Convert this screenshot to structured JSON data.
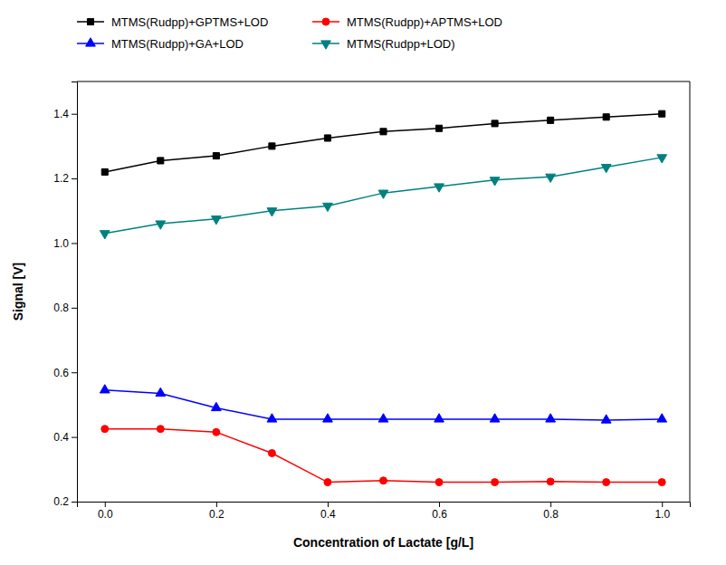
{
  "chart_data": {
    "type": "line",
    "x": [
      0.0,
      0.1,
      0.2,
      0.3,
      0.4,
      0.5,
      0.6,
      0.7,
      0.8,
      0.9,
      1.0
    ],
    "series": [
      {
        "name": "MTMS(Rudpp)+GPTMS+LOD",
        "color": "#000000",
        "marker": "square",
        "values": [
          1.22,
          1.255,
          1.27,
          1.3,
          1.325,
          1.345,
          1.355,
          1.37,
          1.38,
          1.39,
          1.4
        ]
      },
      {
        "name": "MTMS(Rudpp)+APTMS+LOD",
        "color": "#ff0000",
        "marker": "circle",
        "values": [
          0.425,
          0.425,
          0.415,
          0.35,
          0.26,
          0.265,
          0.26,
          0.26,
          0.262,
          0.26,
          0.26
        ]
      },
      {
        "name": "MTMS(Rudpp)+GA+LOD",
        "color": "#0000ff",
        "marker": "triangle-up",
        "values": [
          0.545,
          0.535,
          0.49,
          0.455,
          0.455,
          0.455,
          0.455,
          0.455,
          0.455,
          0.452,
          0.455
        ]
      },
      {
        "name": "MTMS(Rudpp+LOD)",
        "color": "#008080",
        "marker": "triangle-down",
        "values": [
          1.03,
          1.06,
          1.075,
          1.1,
          1.115,
          1.155,
          1.175,
          1.195,
          1.205,
          1.235,
          1.265
        ]
      }
    ],
    "xlabel": "Concentration of Lactate [g/L]",
    "ylabel": "Signal [V]",
    "xlim": [
      -0.05,
      1.05
    ],
    "ylim": [
      0.2,
      1.5
    ],
    "xticks": [
      {
        "value": 0.0,
        "label": "0.0"
      },
      0.2,
      0.4,
      0.6,
      0.8,
      {
        "value": 1.0,
        "label": "1.0"
      }
    ],
    "yticks": [
      0.2,
      0.4,
      0.6,
      0.8,
      {
        "value": 1.0,
        "label": "1.0"
      },
      1.2,
      1.4
    ],
    "grid": false,
    "legend": "top"
  }
}
